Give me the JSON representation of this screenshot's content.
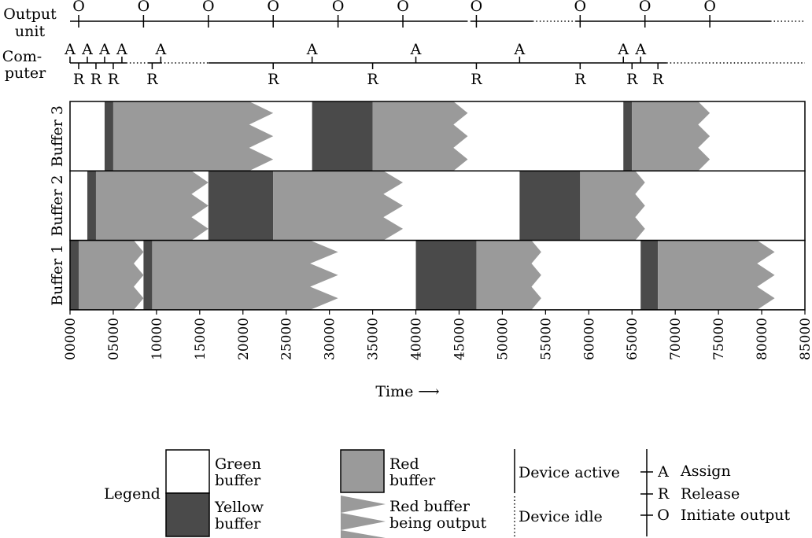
{
  "chart_data": {
    "type": "timing-diagram",
    "xlabel": "Time ⟶",
    "x_range": [
      0,
      85000
    ],
    "x_ticks": [
      "00000",
      "05000",
      "10000",
      "15000",
      "20000",
      "25000",
      "30000",
      "35000",
      "40000",
      "45000",
      "50000",
      "55000",
      "60000",
      "65000",
      "70000",
      "75000",
      "80000",
      "85000"
    ],
    "output_unit": {
      "label_line1": "Output",
      "label_line2": "unit",
      "marker": "O",
      "active_segments": [
        [
          0,
          46000
        ],
        [
          46300,
          53500
        ],
        [
          58500,
          81000
        ]
      ],
      "idle_segments": [
        [
          53500,
          58500
        ],
        [
          81000,
          85000
        ]
      ],
      "events": [
        1000,
        8500,
        16000,
        23500,
        31000,
        38500,
        47000,
        59000,
        66500,
        74000
      ]
    },
    "computer": {
      "label_line1": "Com-",
      "label_line2": "puter",
      "assign_marker": "A",
      "release_marker": "R",
      "active_segments": [
        [
          0,
          6500
        ],
        [
          9000,
          10500
        ],
        [
          16000,
          69000
        ]
      ],
      "idle_segments": [
        [
          6500,
          9000
        ],
        [
          10500,
          16000
        ],
        [
          69000,
          85000
        ]
      ],
      "assign_events": [
        0,
        2000,
        4000,
        6000,
        10500,
        28000,
        40000,
        52000,
        64000,
        66000
      ],
      "release_events": [
        1000,
        3000,
        5000,
        9500,
        23500,
        35000,
        47000,
        59000,
        65000,
        68000
      ]
    },
    "buffers": [
      {
        "label": "Buffer 3",
        "yellow": [
          [
            4000,
            5000
          ],
          [
            28000,
            35000
          ],
          [
            64000,
            65000
          ]
        ],
        "red": [
          [
            5000,
            23500
          ],
          [
            35000,
            46000
          ],
          [
            65000,
            74000
          ]
        ]
      },
      {
        "label": "Buffer 2",
        "yellow": [
          [
            2000,
            3000
          ],
          [
            16000,
            23500
          ],
          [
            52000,
            59000
          ]
        ],
        "red": [
          [
            3000,
            16000
          ],
          [
            23500,
            38500
          ],
          [
            59000,
            66500
          ]
        ]
      },
      {
        "label": "Buffer 1",
        "yellow": [
          [
            0,
            1000
          ],
          [
            8500,
            9500
          ],
          [
            40000,
            47000
          ],
          [
            66000,
            68000
          ]
        ],
        "red": [
          [
            1000,
            8500
          ],
          [
            9500,
            31000
          ],
          [
            47000,
            54500
          ],
          [
            68000,
            81500
          ]
        ]
      }
    ],
    "colors": {
      "yellow": "#4a4a4a",
      "red": "#9a9a9a",
      "green": "#ffffff",
      "line": "#000000"
    }
  },
  "legend": {
    "title": "Legend",
    "green_line1": "Green",
    "green_line2": "buffer",
    "yellow_line1": "Yellow",
    "yellow_line2": "buffer",
    "red_line1": "Red",
    "red_line2": "buffer",
    "output_line1": "Red buffer",
    "output_line2": "being output",
    "device_active": "Device active",
    "device_idle": "Device idle",
    "assign_symbol": "A",
    "assign_text": "Assign",
    "release_symbol": "R",
    "release_text": "Release",
    "output_symbol": "O",
    "output_text": "Initiate output"
  }
}
